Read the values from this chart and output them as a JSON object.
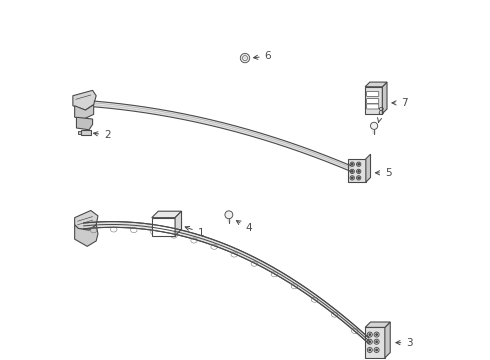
{
  "bg_color": "#ffffff",
  "line_color": "#4a4a4a",
  "lw": 0.8
}
